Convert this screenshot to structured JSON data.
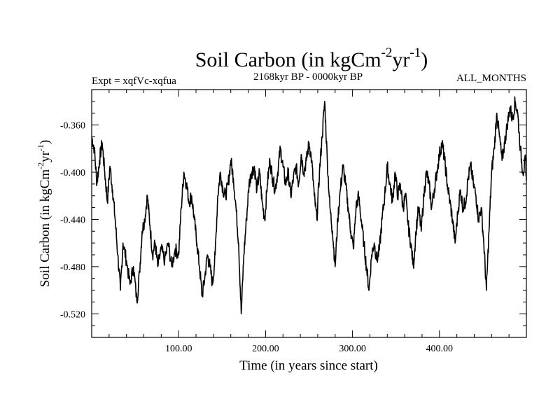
{
  "chart_data": {
    "type": "line",
    "title": "Soil Carbon (in kgCm",
    "title_sup1": "-2",
    "title_mid": "yr",
    "title_sup2": "-1",
    "title_end": ")",
    "left_label": "Expt = xqfVc-xqfua",
    "center_label": "2168kyr BP - 0000kyr BP",
    "right_label": "ALL_MONTHS",
    "xlabel": "Time (in years since start)",
    "ylabel_main": "Soil Carbon (in kgCm",
    "ylabel_sup1": "-2",
    "ylabel_mid": "yr",
    "ylabel_sup2": "-1",
    "ylabel_end": ")",
    "xlim": [
      0,
      500
    ],
    "ylim": [
      -0.54,
      -0.33
    ],
    "x_ticks": [
      {
        "value": 100,
        "label": "100.00"
      },
      {
        "value": 200,
        "label": "200.00"
      },
      {
        "value": 300,
        "label": "300.00"
      },
      {
        "value": 400,
        "label": "400.00"
      }
    ],
    "y_ticks": [
      {
        "value": -0.36,
        "label": "-0.360"
      },
      {
        "value": -0.4,
        "label": "-0.400"
      },
      {
        "value": -0.44,
        "label": "-0.440"
      },
      {
        "value": -0.48,
        "label": "-0.480"
      },
      {
        "value": -0.52,
        "label": "-0.520"
      }
    ],
    "series": [
      {
        "name": "soil carbon",
        "color": "#000000",
        "points": [
          [
            0,
            -0.37
          ],
          [
            3,
            -0.38
          ],
          [
            6,
            -0.41
          ],
          [
            9,
            -0.39
          ],
          [
            12,
            -0.375
          ],
          [
            15,
            -0.4
          ],
          [
            18,
            -0.425
          ],
          [
            21,
            -0.395
          ],
          [
            24,
            -0.415
          ],
          [
            27,
            -0.44
          ],
          [
            30,
            -0.47
          ],
          [
            33,
            -0.5
          ],
          [
            36,
            -0.46
          ],
          [
            40,
            -0.475
          ],
          [
            44,
            -0.495
          ],
          [
            48,
            -0.48
          ],
          [
            52,
            -0.51
          ],
          [
            55,
            -0.485
          ],
          [
            58,
            -0.45
          ],
          [
            61,
            -0.44
          ],
          [
            64,
            -0.42
          ],
          [
            67,
            -0.445
          ],
          [
            70,
            -0.47
          ],
          [
            73,
            -0.46
          ],
          [
            76,
            -0.48
          ],
          [
            80,
            -0.465
          ],
          [
            84,
            -0.475
          ],
          [
            88,
            -0.46
          ],
          [
            92,
            -0.48
          ],
          [
            96,
            -0.465
          ],
          [
            100,
            -0.47
          ],
          [
            103,
            -0.43
          ],
          [
            106,
            -0.4
          ],
          [
            109,
            -0.41
          ],
          [
            112,
            -0.425
          ],
          [
            115,
            -0.42
          ],
          [
            118,
            -0.44
          ],
          [
            121,
            -0.46
          ],
          [
            124,
            -0.48
          ],
          [
            127,
            -0.505
          ],
          [
            130,
            -0.49
          ],
          [
            133,
            -0.47
          ],
          [
            136,
            -0.48
          ],
          [
            139,
            -0.495
          ],
          [
            142,
            -0.47
          ],
          [
            145,
            -0.42
          ],
          [
            148,
            -0.4
          ],
          [
            151,
            -0.415
          ],
          [
            154,
            -0.42
          ],
          [
            157,
            -0.41
          ],
          [
            160,
            -0.39
          ],
          [
            163,
            -0.405
          ],
          [
            166,
            -0.43
          ],
          [
            169,
            -0.46
          ],
          [
            172,
            -0.52
          ],
          [
            175,
            -0.47
          ],
          [
            178,
            -0.44
          ],
          [
            181,
            -0.41
          ],
          [
            184,
            -0.4
          ],
          [
            187,
            -0.395
          ],
          [
            190,
            -0.415
          ],
          [
            193,
            -0.4
          ],
          [
            196,
            -0.425
          ],
          [
            199,
            -0.44
          ],
          [
            202,
            -0.41
          ],
          [
            205,
            -0.39
          ],
          [
            208,
            -0.405
          ],
          [
            211,
            -0.415
          ],
          [
            214,
            -0.4
          ],
          [
            217,
            -0.38
          ],
          [
            220,
            -0.395
          ],
          [
            223,
            -0.41
          ],
          [
            226,
            -0.4
          ],
          [
            229,
            -0.42
          ],
          [
            232,
            -0.405
          ],
          [
            235,
            -0.395
          ],
          [
            238,
            -0.41
          ],
          [
            241,
            -0.385
          ],
          [
            244,
            -0.4
          ],
          [
            247,
            -0.39
          ],
          [
            250,
            -0.375
          ],
          [
            253,
            -0.39
          ],
          [
            256,
            -0.42
          ],
          [
            259,
            -0.44
          ],
          [
            262,
            -0.4
          ],
          [
            265,
            -0.37
          ],
          [
            268,
            -0.34
          ],
          [
            271,
            -0.39
          ],
          [
            274,
            -0.43
          ],
          [
            277,
            -0.45
          ],
          [
            280,
            -0.48
          ],
          [
            283,
            -0.44
          ],
          [
            286,
            -0.415
          ],
          [
            289,
            -0.395
          ],
          [
            292,
            -0.41
          ],
          [
            295,
            -0.43
          ],
          [
            298,
            -0.45
          ],
          [
            301,
            -0.465
          ],
          [
            304,
            -0.43
          ],
          [
            307,
            -0.42
          ],
          [
            310,
            -0.44
          ],
          [
            313,
            -0.46
          ],
          [
            316,
            -0.48
          ],
          [
            319,
            -0.5
          ],
          [
            322,
            -0.47
          ],
          [
            325,
            -0.46
          ],
          [
            328,
            -0.475
          ],
          [
            331,
            -0.465
          ],
          [
            334,
            -0.44
          ],
          [
            337,
            -0.42
          ],
          [
            340,
            -0.395
          ],
          [
            343,
            -0.41
          ],
          [
            346,
            -0.425
          ],
          [
            349,
            -0.4
          ],
          [
            352,
            -0.42
          ],
          [
            355,
            -0.41
          ],
          [
            358,
            -0.43
          ],
          [
            361,
            -0.42
          ],
          [
            364,
            -0.445
          ],
          [
            367,
            -0.46
          ],
          [
            370,
            -0.48
          ],
          [
            373,
            -0.45
          ],
          [
            376,
            -0.43
          ],
          [
            379,
            -0.45
          ],
          [
            382,
            -0.42
          ],
          [
            385,
            -0.4
          ],
          [
            388,
            -0.41
          ],
          [
            391,
            -0.43
          ],
          [
            394,
            -0.415
          ],
          [
            397,
            -0.4
          ],
          [
            400,
            -0.385
          ],
          [
            403,
            -0.375
          ],
          [
            406,
            -0.39
          ],
          [
            409,
            -0.41
          ],
          [
            412,
            -0.425
          ],
          [
            415,
            -0.44
          ],
          [
            418,
            -0.46
          ],
          [
            421,
            -0.435
          ],
          [
            424,
            -0.415
          ],
          [
            427,
            -0.43
          ],
          [
            430,
            -0.425
          ],
          [
            433,
            -0.405
          ],
          [
            436,
            -0.395
          ],
          [
            439,
            -0.41
          ],
          [
            442,
            -0.42
          ],
          [
            445,
            -0.44
          ],
          [
            448,
            -0.43
          ],
          [
            451,
            -0.46
          ],
          [
            454,
            -0.5
          ],
          [
            457,
            -0.45
          ],
          [
            460,
            -0.4
          ],
          [
            463,
            -0.38
          ],
          [
            466,
            -0.35
          ],
          [
            469,
            -0.37
          ],
          [
            472,
            -0.39
          ],
          [
            475,
            -0.375
          ],
          [
            478,
            -0.36
          ],
          [
            481,
            -0.345
          ],
          [
            484,
            -0.355
          ],
          [
            487,
            -0.34
          ],
          [
            490,
            -0.35
          ],
          [
            493,
            -0.38
          ],
          [
            496,
            -0.4
          ],
          [
            499,
            -0.39
          ],
          [
            500,
            -0.405
          ]
        ]
      }
    ]
  }
}
